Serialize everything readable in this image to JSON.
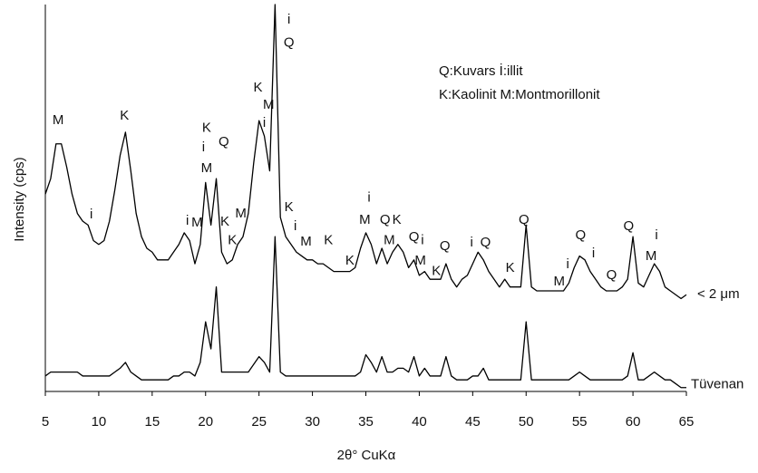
{
  "chart_data": {
    "type": "line",
    "x_label": "2θ° CuKα",
    "y_label": "Intensity (cps)",
    "x": [
      5,
      5.5,
      6,
      6.5,
      7,
      7.5,
      8,
      8.5,
      9,
      9.5,
      10,
      10.5,
      11,
      11.5,
      12,
      12.5,
      13,
      13.5,
      14,
      14.5,
      15,
      15.5,
      16,
      16.5,
      17,
      17.5,
      18,
      18.5,
      19,
      19.5,
      20,
      20.5,
      21,
      21.5,
      22,
      22.5,
      23,
      23.5,
      24,
      24.5,
      25,
      25.5,
      26,
      26.5,
      27,
      27.5,
      28,
      28.5,
      29,
      29.5,
      30,
      30.5,
      31,
      31.5,
      32,
      32.5,
      33,
      33.5,
      34,
      34.5,
      35,
      35.5,
      36,
      36.5,
      37,
      37.5,
      38,
      38.5,
      39,
      39.5,
      40,
      40.5,
      41,
      41.5,
      42,
      42.5,
      43,
      43.5,
      44,
      44.5,
      45,
      45.5,
      46,
      46.5,
      47,
      47.5,
      48,
      48.5,
      49,
      49.5,
      50,
      50.5,
      51,
      51.5,
      52,
      52.5,
      53,
      53.5,
      54,
      54.5,
      55,
      55.5,
      56,
      56.5,
      57,
      57.5,
      58,
      58.5,
      59,
      59.5,
      60,
      60.5,
      61,
      61.5,
      62,
      62.5,
      63,
      63.5,
      64,
      64.5,
      65
    ],
    "series": [
      {
        "name": "< 2 μm",
        "color": "#000000",
        "values": [
          51,
          55,
          64,
          64,
          58,
          51,
          46,
          44,
          43,
          39,
          38,
          39,
          44,
          52,
          61,
          67,
          57,
          46,
          40,
          37,
          36,
          34,
          34,
          34,
          36,
          38,
          41,
          39,
          33,
          38,
          54,
          43,
          55,
          36,
          33,
          34,
          38,
          40,
          46,
          59,
          70,
          66,
          57,
          100,
          45,
          40,
          38,
          36,
          35,
          34,
          34,
          33,
          33,
          32,
          31,
          31,
          31,
          31,
          32,
          37,
          41,
          38,
          33,
          37,
          33,
          36,
          38,
          36,
          32,
          34,
          30,
          31,
          29,
          29,
          29,
          33,
          29,
          27,
          29,
          30,
          33,
          36,
          34,
          31,
          29,
          27,
          29,
          27,
          27,
          27,
          43,
          27,
          26,
          26,
          26,
          26,
          26,
          26,
          28,
          32,
          35,
          34,
          31,
          29,
          27,
          26,
          26,
          26,
          27,
          29,
          40,
          28,
          27,
          30,
          33,
          31,
          27,
          26,
          25,
          24,
          25
        ]
      },
      {
        "name": "Tüvenan",
        "color": "#000000",
        "values": [
          4,
          5,
          5,
          5,
          5,
          5,
          5,
          4,
          4,
          4,
          4,
          4,
          4,
          5,
          6,
          7.5,
          5,
          4,
          3,
          3,
          3,
          3,
          3,
          3,
          4,
          4,
          5,
          5,
          4,
          7.5,
          18,
          11,
          27,
          5,
          5,
          5,
          5,
          5,
          5,
          7,
          9,
          7.5,
          5,
          40,
          5,
          4,
          4,
          4,
          4,
          4,
          4,
          4,
          4,
          4,
          4,
          4,
          4,
          4,
          4,
          5,
          9.5,
          7.5,
          5,
          9,
          5,
          5,
          6,
          6,
          5,
          9,
          4,
          6,
          4,
          4,
          4,
          9,
          4,
          3,
          3,
          3,
          4,
          4,
          6,
          3,
          3,
          3,
          3,
          3,
          3,
          3,
          18,
          3,
          3,
          3,
          3,
          3,
          3,
          3,
          3,
          4,
          5,
          4,
          3,
          3,
          3,
          3,
          3,
          3,
          3,
          4,
          10,
          3,
          3,
          4,
          5,
          4,
          3,
          3,
          2,
          1,
          1
        ]
      }
    ],
    "xlim": [
      5,
      65
    ],
    "ylim": [
      0,
      100
    ],
    "xticks": [
      5,
      10,
      15,
      20,
      25,
      30,
      35,
      40,
      45,
      50,
      55,
      60,
      65
    ],
    "key": [
      "Q:Kuvars   İ:illit",
      "K:Kaolinit   M:Montmorillonit"
    ],
    "annotations": [
      {
        "text": "M",
        "x": 6.2,
        "y": 70
      },
      {
        "text": "K",
        "x": 12.4,
        "y": 71.2
      },
      {
        "text": "i",
        "x": 9.3,
        "y": 45.7
      },
      {
        "text": "i",
        "x": 18.3,
        "y": 44
      },
      {
        "text": "M",
        "x": 19.2,
        "y": 43.6
      },
      {
        "text": "K",
        "x": 20.1,
        "y": 68
      },
      {
        "text": "i",
        "x": 19.8,
        "y": 63
      },
      {
        "text": "M",
        "x": 20.1,
        "y": 57.6
      },
      {
        "text": "Q",
        "x": 21.7,
        "y": 64.4
      },
      {
        "text": "K",
        "x": 21.8,
        "y": 43.8
      },
      {
        "text": "K",
        "x": 22.5,
        "y": 39
      },
      {
        "text": "M",
        "x": 23.3,
        "y": 45.9
      },
      {
        "text": "K",
        "x": 24.9,
        "y": 78.5
      },
      {
        "text": "M",
        "x": 25.9,
        "y": 74
      },
      {
        "text": "i",
        "x": 25.5,
        "y": 69.3
      },
      {
        "text": "i",
        "x": 27.8,
        "y": 96
      },
      {
        "text": "Q",
        "x": 27.8,
        "y": 90
      },
      {
        "text": "K",
        "x": 27.8,
        "y": 47.5
      },
      {
        "text": "i",
        "x": 28.4,
        "y": 42.6
      },
      {
        "text": "M",
        "x": 29.4,
        "y": 38.6
      },
      {
        "text": "K",
        "x": 31.5,
        "y": 39
      },
      {
        "text": "K",
        "x": 33.5,
        "y": 33.7
      },
      {
        "text": "i",
        "x": 35.3,
        "y": 50
      },
      {
        "text": "M",
        "x": 34.9,
        "y": 44.3
      },
      {
        "text": "Q",
        "x": 36.8,
        "y": 44.3
      },
      {
        "text": "K",
        "x": 37.9,
        "y": 44.3
      },
      {
        "text": "M",
        "x": 37.2,
        "y": 39
      },
      {
        "text": "Q",
        "x": 39.5,
        "y": 39.8
      },
      {
        "text": "i",
        "x": 40.3,
        "y": 39
      },
      {
        "text": "M",
        "x": 40.1,
        "y": 33.7
      },
      {
        "text": "K",
        "x": 41.6,
        "y": 31
      },
      {
        "text": "Q",
        "x": 42.4,
        "y": 37.5
      },
      {
        "text": "i",
        "x": 44.9,
        "y": 38.4
      },
      {
        "text": "Q",
        "x": 46.2,
        "y": 38.4
      },
      {
        "text": "K",
        "x": 48.5,
        "y": 31.9
      },
      {
        "text": "Q",
        "x": 49.8,
        "y": 44.3
      },
      {
        "text": "Q",
        "x": 55.1,
        "y": 40.3
      },
      {
        "text": "i",
        "x": 53.9,
        "y": 32.8
      },
      {
        "text": "M",
        "x": 53.1,
        "y": 28.3
      },
      {
        "text": "i",
        "x": 56.3,
        "y": 35.6
      },
      {
        "text": "Q",
        "x": 58,
        "y": 30
      },
      {
        "text": "Q",
        "x": 59.6,
        "y": 42.6
      },
      {
        "text": "i",
        "x": 62.2,
        "y": 40.3
      },
      {
        "text": "M",
        "x": 61.7,
        "y": 34.9
      }
    ]
  }
}
